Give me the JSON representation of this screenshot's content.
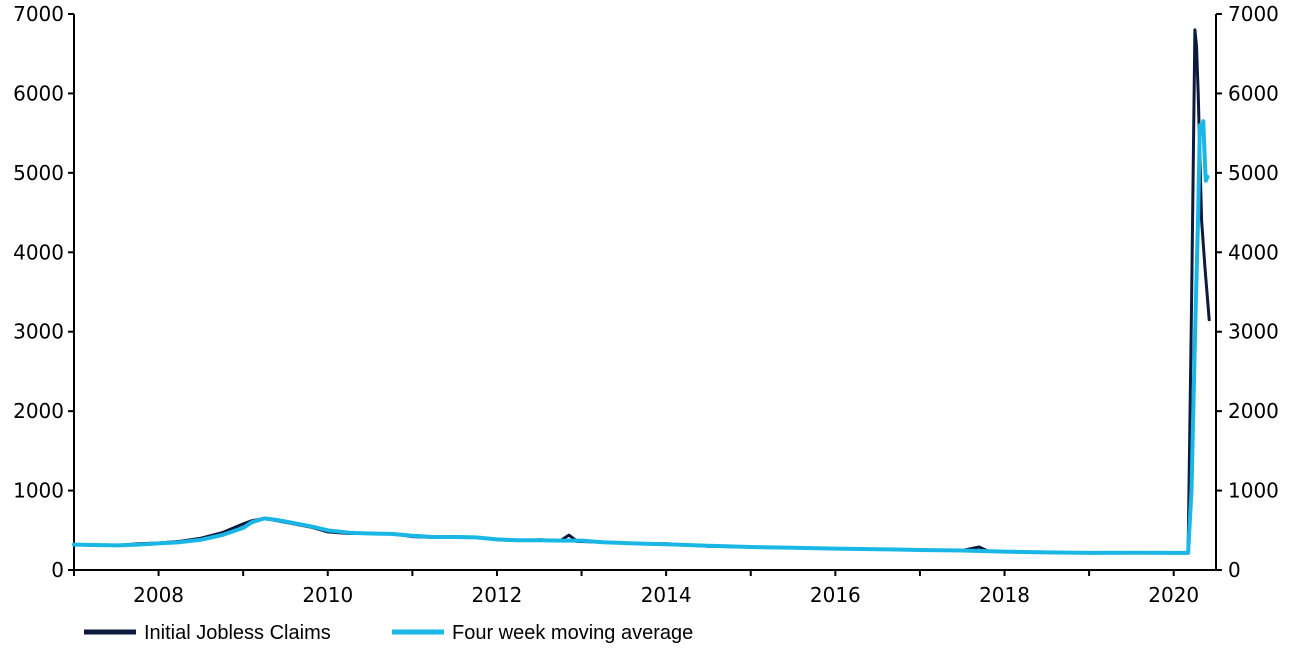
{
  "chart_data": {
    "type": "line",
    "title": "",
    "xlabel": "",
    "ylabel": "",
    "xlim": [
      2007.0,
      2020.5
    ],
    "ylim": [
      0,
      7000
    ],
    "y2lim": [
      0,
      7000
    ],
    "grid": false,
    "legend": "bottom-left",
    "x_ticks": [
      "2008",
      "2010",
      "2012",
      "2014",
      "2016",
      "2018",
      "2020"
    ],
    "y_ticks": [
      "0",
      "1000",
      "2000",
      "3000",
      "4000",
      "5000",
      "6000",
      "7000"
    ],
    "y2_ticks": [
      "0",
      "1000",
      "2000",
      "3000",
      "4000",
      "5000",
      "6000",
      "7000"
    ],
    "series": [
      {
        "name": "Initial Jobless Claims",
        "color": "#0b1a3e",
        "x": [
          2007.0,
          2007.25,
          2007.5,
          2007.75,
          2008.0,
          2008.25,
          2008.5,
          2008.75,
          2009.0,
          2009.1,
          2009.25,
          2009.4,
          2009.6,
          2009.8,
          2010.0,
          2010.25,
          2010.5,
          2010.75,
          2011.0,
          2011.25,
          2011.5,
          2011.75,
          2012.0,
          2012.25,
          2012.5,
          2012.75,
          2012.85,
          2012.95,
          2013.25,
          2013.5,
          2013.75,
          2014.0,
          2014.5,
          2015.0,
          2015.5,
          2016.0,
          2016.5,
          2017.0,
          2017.5,
          2017.7,
          2017.8,
          2018.0,
          2018.5,
          2019.0,
          2019.5,
          2020.0,
          2020.17,
          2020.21,
          2020.25,
          2020.27,
          2020.29,
          2020.33,
          2020.37,
          2020.42
        ],
        "values": [
          320,
          310,
          310,
          330,
          340,
          360,
          400,
          470,
          580,
          620,
          650,
          620,
          580,
          540,
          480,
          460,
          460,
          460,
          420,
          410,
          420,
          410,
          380,
          370,
          380,
          370,
          440,
          360,
          350,
          340,
          330,
          330,
          300,
          290,
          280,
          270,
          260,
          250,
          245,
          290,
          240,
          230,
          220,
          215,
          220,
          215,
          220,
          3300,
          6800,
          6600,
          6000,
          4400,
          3800,
          3150
        ]
      },
      {
        "name": "Four week moving average",
        "color": "#19b6e6",
        "x": [
          2007.0,
          2007.25,
          2007.5,
          2007.75,
          2008.0,
          2008.25,
          2008.5,
          2008.75,
          2009.0,
          2009.1,
          2009.25,
          2009.4,
          2009.6,
          2009.8,
          2010.0,
          2010.25,
          2010.5,
          2010.75,
          2011.0,
          2011.25,
          2011.5,
          2011.75,
          2012.0,
          2012.25,
          2012.5,
          2012.75,
          2013.0,
          2013.25,
          2013.5,
          2013.75,
          2014.0,
          2014.5,
          2015.0,
          2015.5,
          2016.0,
          2016.5,
          2017.0,
          2017.5,
          2018.0,
          2018.5,
          2019.0,
          2019.5,
          2020.0,
          2020.17,
          2020.21,
          2020.25,
          2020.29,
          2020.31,
          2020.33,
          2020.35,
          2020.37,
          2020.38,
          2020.4
        ],
        "values": [
          320,
          315,
          310,
          320,
          335,
          350,
          380,
          440,
          530,
          600,
          650,
          630,
          590,
          550,
          500,
          470,
          460,
          455,
          430,
          415,
          415,
          410,
          385,
          375,
          375,
          370,
          370,
          350,
          340,
          330,
          325,
          305,
          290,
          280,
          270,
          262,
          252,
          245,
          232,
          222,
          215,
          218,
          215,
          215,
          1000,
          2900,
          4500,
          5600,
          5500,
          5650,
          5100,
          4900,
          4950
        ]
      }
    ]
  }
}
